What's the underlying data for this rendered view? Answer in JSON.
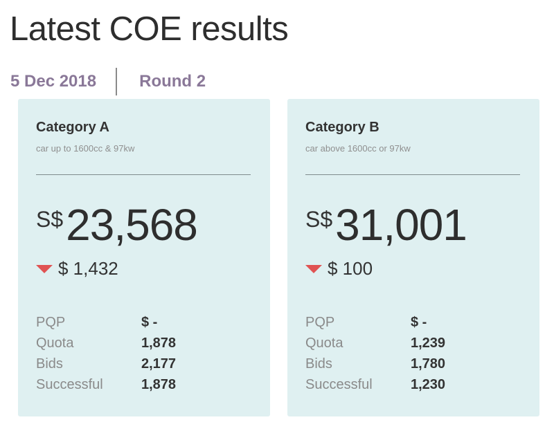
{
  "header": {
    "title": "Latest COE results",
    "date": "5 Dec 2018",
    "round": "Round 2"
  },
  "colors": {
    "card_background": "#dff0f1",
    "meta_text": "#8a7898",
    "down_indicator": "#e05353"
  },
  "cards": [
    {
      "title": "Category A",
      "subtitle": "car up to 1600cc & 97kw",
      "currency": "S$",
      "price": "23,568",
      "change_direction": "down",
      "change": "$ 1,432",
      "stats": [
        {
          "label": "PQP",
          "value": "$ -"
        },
        {
          "label": "Quota",
          "value": "1,878"
        },
        {
          "label": "Bids",
          "value": "2,177"
        },
        {
          "label": "Successful",
          "value": "1,878"
        }
      ]
    },
    {
      "title": "Category B",
      "subtitle": "car above 1600cc or 97kw",
      "currency": "S$",
      "price": "31,001",
      "change_direction": "down",
      "change": "$ 100",
      "stats": [
        {
          "label": "PQP",
          "value": "$ -"
        },
        {
          "label": "Quota",
          "value": "1,239"
        },
        {
          "label": "Bids",
          "value": "1,780"
        },
        {
          "label": "Successful",
          "value": "1,230"
        }
      ]
    }
  ]
}
